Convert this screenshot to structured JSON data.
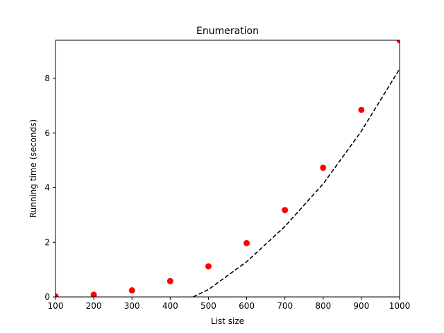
{
  "chart_data": {
    "type": "scatter",
    "title": "Enumeration",
    "xlabel": "List size",
    "ylabel": "Running time (seconds)",
    "xlim": [
      100,
      1000
    ],
    "ylim": [
      0,
      9.4
    ],
    "xticks": [
      100,
      200,
      300,
      400,
      500,
      600,
      700,
      800,
      900,
      1000
    ],
    "yticks": [
      0,
      2,
      4,
      6,
      8
    ],
    "grid": false,
    "series": [
      {
        "kind": "scatter",
        "color": "#ff0000",
        "x": [
          100,
          200,
          300,
          400,
          500,
          600,
          700,
          800,
          900,
          1000
        ],
        "y": [
          0.02,
          0.08,
          0.24,
          0.58,
          1.12,
          1.97,
          3.18,
          4.73,
          6.85,
          9.4
        ]
      },
      {
        "kind": "line",
        "style": "dashed",
        "color": "#000000",
        "x": [
          460,
          500,
          600,
          700,
          800,
          900,
          1000
        ],
        "y": [
          0.0,
          0.27,
          1.29,
          2.58,
          4.14,
          6.07,
          8.35
        ]
      }
    ]
  }
}
